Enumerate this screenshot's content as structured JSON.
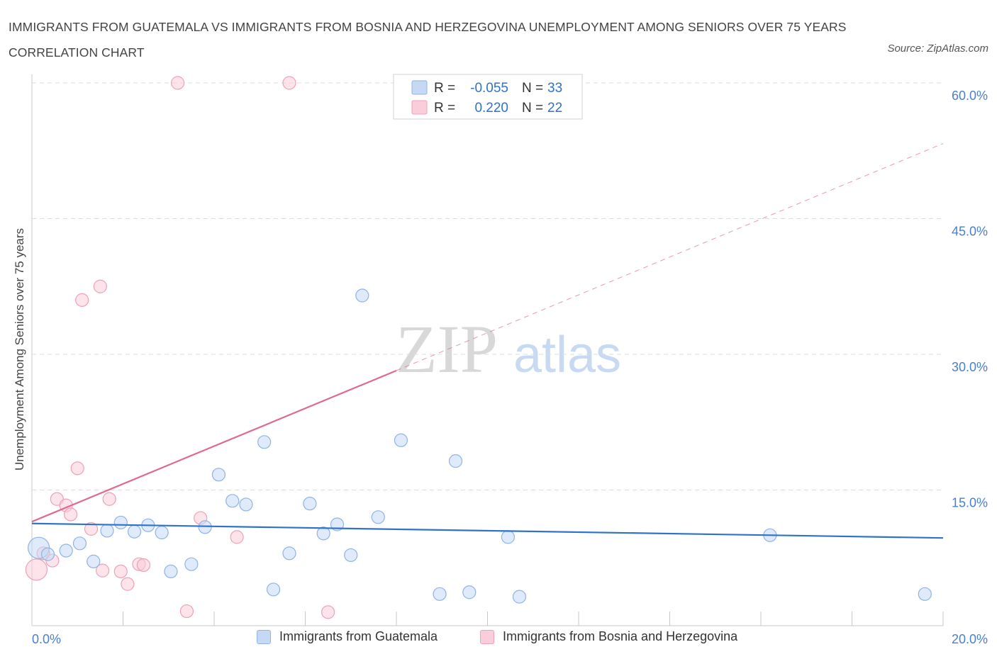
{
  "title": "IMMIGRANTS FROM GUATEMALA VS IMMIGRANTS FROM BOSNIA AND HERZEGOVINA UNEMPLOYMENT AMONG SENIORS OVER 75 YEARS CORRELATION CHART",
  "source": "Source: ZipAtlas.com",
  "watermark": {
    "zip": "ZIP",
    "atlas": "atlas"
  },
  "colors": {
    "blue_fill": "#c5d9f5",
    "blue_stroke": "#8fb3e8",
    "blue_line": "#2f72c9",
    "pink_fill": "#f9cdd9",
    "pink_stroke": "#eea0b6",
    "pink_line": "#e06992",
    "tick_label": "#4a7fd0",
    "grid": "#dcdcdc"
  },
  "legend": {
    "rows": [
      {
        "r_label": "R =",
        "r_value": "-0.055",
        "n_label": "N =",
        "n_value": "33"
      },
      {
        "r_label": "R =",
        "r_value": "0.220",
        "n_label": "N =",
        "n_value": "22"
      }
    ]
  },
  "chart_data": {
    "type": "scatter",
    "title": "IMMIGRANTS FROM GUATEMALA VS IMMIGRANTS FROM BOSNIA AND HERZEGOVINA UNEMPLOYMENT AMONG SENIORS OVER 75 YEARS CORRELATION CHART",
    "xlabel": "",
    "ylabel": "Unemployment Among Seniors over 75 years",
    "xlim": [
      0,
      20
    ],
    "ylim": [
      0,
      60
    ],
    "x_tick_labels": [
      "0.0%",
      "20.0%"
    ],
    "y_ticks": [
      15,
      30,
      45,
      60
    ],
    "y_tick_labels": [
      "15.0%",
      "30.0%",
      "45.0%",
      "60.0%"
    ],
    "grid": true,
    "legend_position": "top-center",
    "series": [
      {
        "name": "Immigrants from Guatemala",
        "r": -0.055,
        "n": 33,
        "trend": {
          "x": [
            0,
            20
          ],
          "y": [
            11.3,
            9.7
          ]
        },
        "points": [
          {
            "x": 0.15,
            "y": 8.6,
            "size": "large"
          },
          {
            "x": 0.35,
            "y": 7.9
          },
          {
            "x": 0.75,
            "y": 8.3
          },
          {
            "x": 1.05,
            "y": 9.1
          },
          {
            "x": 1.35,
            "y": 7.1
          },
          {
            "x": 1.65,
            "y": 10.5
          },
          {
            "x": 1.95,
            "y": 11.4
          },
          {
            "x": 2.25,
            "y": 10.4
          },
          {
            "x": 2.55,
            "y": 11.1
          },
          {
            "x": 2.85,
            "y": 10.3
          },
          {
            "x": 3.05,
            "y": 6.0
          },
          {
            "x": 3.5,
            "y": 6.8
          },
          {
            "x": 3.8,
            "y": 10.9
          },
          {
            "x": 4.1,
            "y": 16.7
          },
          {
            "x": 4.4,
            "y": 13.8
          },
          {
            "x": 4.7,
            "y": 13.4
          },
          {
            "x": 5.1,
            "y": 20.3
          },
          {
            "x": 5.3,
            "y": 4.0
          },
          {
            "x": 5.65,
            "y": 8.0
          },
          {
            "x": 6.1,
            "y": 13.5
          },
          {
            "x": 6.4,
            "y": 10.2
          },
          {
            "x": 6.7,
            "y": 11.2
          },
          {
            "x": 7.0,
            "y": 7.8
          },
          {
            "x": 7.25,
            "y": 36.5
          },
          {
            "x": 7.6,
            "y": 12.0
          },
          {
            "x": 8.1,
            "y": 20.5
          },
          {
            "x": 8.95,
            "y": 3.5
          },
          {
            "x": 9.3,
            "y": 18.2
          },
          {
            "x": 9.6,
            "y": 3.7
          },
          {
            "x": 10.45,
            "y": 9.8
          },
          {
            "x": 10.7,
            "y": 3.2
          },
          {
            "x": 16.2,
            "y": 10.0
          },
          {
            "x": 19.6,
            "y": 3.5
          }
        ]
      },
      {
        "name": "Immigrants from Bosnia and Herzegovina",
        "r": 0.22,
        "n": 22,
        "trend": {
          "x": [
            0,
            8.0
          ],
          "y": [
            11.5,
            28.2
          ]
        },
        "trend_extended": {
          "x": [
            8.0,
            20
          ],
          "y": [
            28.2,
            53.3
          ]
        },
        "points": [
          {
            "x": 0.1,
            "y": 6.2,
            "size": "large"
          },
          {
            "x": 0.25,
            "y": 8.0
          },
          {
            "x": 0.45,
            "y": 7.2
          },
          {
            "x": 0.55,
            "y": 14.0
          },
          {
            "x": 0.75,
            "y": 13.3
          },
          {
            "x": 0.85,
            "y": 12.3
          },
          {
            "x": 1.0,
            "y": 17.4
          },
          {
            "x": 1.1,
            "y": 36.0
          },
          {
            "x": 1.3,
            "y": 10.7
          },
          {
            "x": 1.5,
            "y": 37.5
          },
          {
            "x": 1.55,
            "y": 6.1
          },
          {
            "x": 1.7,
            "y": 14.0
          },
          {
            "x": 1.95,
            "y": 6.0
          },
          {
            "x": 2.1,
            "y": 4.6
          },
          {
            "x": 2.35,
            "y": 6.8
          },
          {
            "x": 2.45,
            "y": 6.7
          },
          {
            "x": 3.2,
            "y": 60.0
          },
          {
            "x": 3.4,
            "y": 1.6
          },
          {
            "x": 3.7,
            "y": 11.9
          },
          {
            "x": 4.5,
            "y": 9.8
          },
          {
            "x": 5.65,
            "y": 60.0
          },
          {
            "x": 6.5,
            "y": 1.5
          }
        ]
      }
    ]
  }
}
